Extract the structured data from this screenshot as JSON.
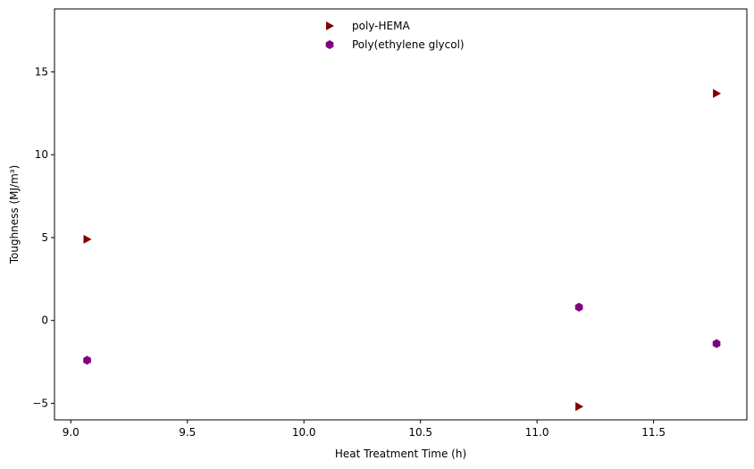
{
  "chart_data": {
    "type": "scatter",
    "title": "",
    "xlabel": "Heat Treatment Time (h)",
    "ylabel": "Toughness (MJ/m³)",
    "xlim": [
      8.93,
      11.9
    ],
    "ylim": [
      -6.0,
      18.8
    ],
    "xticks": [
      9.0,
      9.5,
      10.0,
      10.5,
      11.0,
      11.5
    ],
    "xtick_labels": [
      "9.0",
      "9.5",
      "10.0",
      "10.5",
      "11.0",
      "11.5"
    ],
    "yticks": [
      -5,
      0,
      5,
      10,
      15
    ],
    "ytick_labels": [
      "−5",
      "0",
      "5",
      "10",
      "15"
    ],
    "grid": false,
    "legend_position": "upper-center",
    "series": [
      {
        "name": "poly-HEMA",
        "marker": "triangle-right",
        "color": "#800000",
        "x": [
          9.07,
          11.18,
          11.77
        ],
        "y": [
          4.9,
          -5.2,
          13.7
        ]
      },
      {
        "name": "Poly(ethylene glycol)",
        "marker": "hexagon",
        "color": "#800080",
        "x": [
          9.07,
          11.18,
          11.77
        ],
        "y": [
          -2.4,
          0.8,
          -1.4
        ]
      }
    ]
  }
}
